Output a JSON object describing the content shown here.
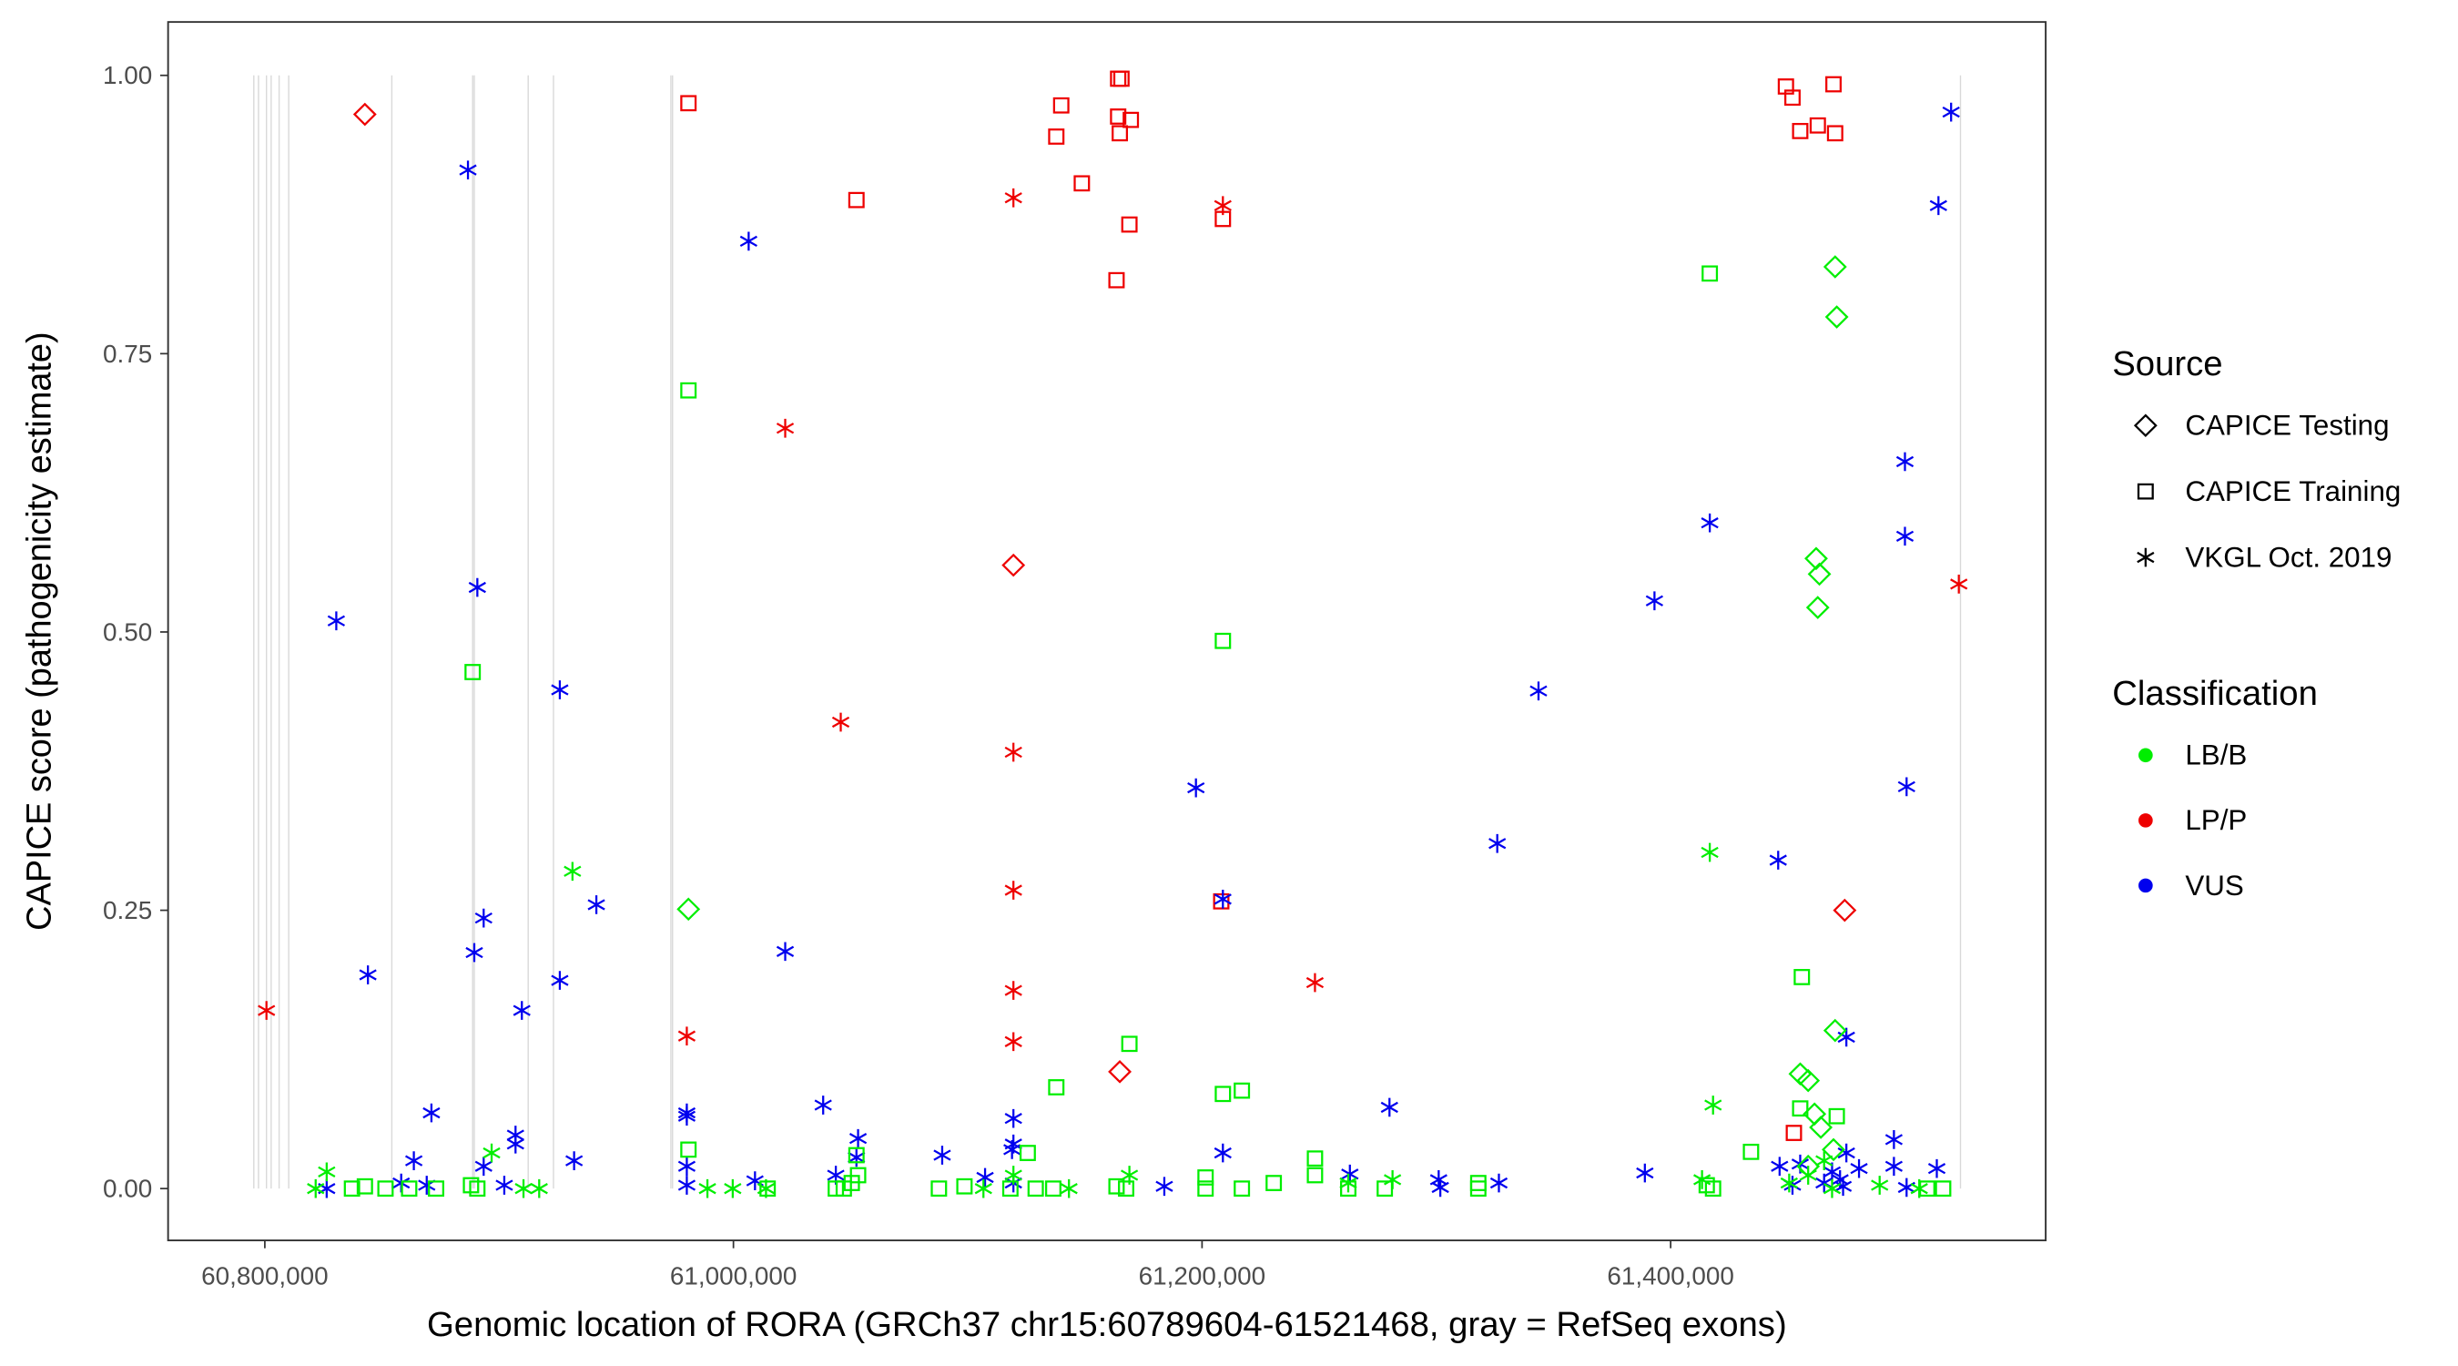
{
  "chart_data": {
    "type": "scatter",
    "xlabel": "Genomic location of RORA (GRCh37 chr15:60789604-61521468, gray = RefSeq exons)",
    "ylabel": "CAPICE score (pathogenicity estimate)",
    "xlim": [
      60789604,
      61521468
    ],
    "ylim": [
      -0.05,
      1.05
    ],
    "x_ticks": [
      {
        "value": 60800000,
        "label": "60,800,000"
      },
      {
        "value": 61000000,
        "label": "61,000,000"
      },
      {
        "value": 61200000,
        "label": "61,200,000"
      },
      {
        "value": 61400000,
        "label": "61,400,000"
      }
    ],
    "y_ticks": [
      {
        "value": 0,
        "label": "0.00"
      },
      {
        "value": 0.25,
        "label": "0.25"
      },
      {
        "value": 0.5,
        "label": "0.50"
      },
      {
        "value": 0.75,
        "label": "0.75"
      },
      {
        "value": 1.0,
        "label": "1.00"
      }
    ],
    "grid": false,
    "exons": [
      60795300,
      60797300,
      60800700,
      60802700,
      60806100,
      60810200,
      60854200,
      60888700,
      60889400,
      60912400,
      60923200,
      60973300,
      60974000,
      61523700
    ],
    "exon_color": "#d9d9d9",
    "legend": {
      "placement": "right",
      "source_title": "Source",
      "sources": [
        {
          "name": "CAPICE Testing",
          "shape": "diamond"
        },
        {
          "name": "CAPICE Training",
          "shape": "square"
        },
        {
          "name": "VKGL Oct. 2019",
          "shape": "asterisk"
        }
      ],
      "class_title": "Classification",
      "classes": [
        {
          "name": "LB/B",
          "color": "#00ee00"
        },
        {
          "name": "LP/P",
          "color": "#ee0000"
        },
        {
          "name": "VUS",
          "color": "#0000ee"
        }
      ]
    },
    "series": [
      {
        "class": "LP/P",
        "source": "CAPICE Testing",
        "points": [
          [
            60842700,
            0.965
          ],
          [
            61119500,
            0.56
          ],
          [
            61164900,
            0.105
          ],
          [
            61474300,
            0.25
          ]
        ]
      },
      {
        "class": "LP/P",
        "source": "CAPICE Training",
        "points": [
          [
            60980800,
            0.975
          ],
          [
            61052500,
            0.888
          ],
          [
            61137800,
            0.945
          ],
          [
            61139900,
            0.973
          ],
          [
            61148700,
            0.903
          ],
          [
            61164200,
            0.997
          ],
          [
            61165600,
            0.997
          ],
          [
            61164200,
            0.963
          ],
          [
            61169600,
            0.96
          ],
          [
            61164900,
            0.948
          ],
          [
            61169000,
            0.866
          ],
          [
            61163500,
            0.816
          ],
          [
            61208900,
            0.871
          ],
          [
            61208200,
            0.258
          ],
          [
            61449200,
            0.99
          ],
          [
            61452000,
            0.98
          ],
          [
            61455300,
            0.95
          ],
          [
            61462800,
            0.955
          ],
          [
            61469500,
            0.992
          ],
          [
            61470200,
            0.948
          ],
          [
            61452600,
            0.05
          ]
        ]
      },
      {
        "class": "LP/P",
        "source": "VKGL Oct. 2019",
        "points": [
          [
            60800700,
            0.16
          ],
          [
            60980100,
            0.137
          ],
          [
            61022100,
            0.683
          ],
          [
            61045800,
            0.419
          ],
          [
            61119500,
            0.89
          ],
          [
            61119500,
            0.392
          ],
          [
            61119500,
            0.268
          ],
          [
            61119500,
            0.178
          ],
          [
            61119500,
            0.132
          ],
          [
            61208900,
            0.883
          ],
          [
            61248200,
            0.185
          ],
          [
            61523000,
            0.543
          ]
        ]
      },
      {
        "class": "VUS",
        "source": "VKGL Oct. 2019",
        "points": [
          [
            60886700,
            0.915
          ],
          [
            60830500,
            0.51
          ],
          [
            60890700,
            0.54
          ],
          [
            60925900,
            0.448
          ],
          [
            60844000,
            0.192
          ],
          [
            60889400,
            0.212
          ],
          [
            60893400,
            0.243
          ],
          [
            60941500,
            0.255
          ],
          [
            60925900,
            0.187
          ],
          [
            60909700,
            0.16
          ],
          [
            60871100,
            0.068
          ],
          [
            60863600,
            0.025
          ],
          [
            60893400,
            0.02
          ],
          [
            60907000,
            0.048
          ],
          [
            60907000,
            0.04
          ],
          [
            60932000,
            0.025
          ],
          [
            60826400,
            0.0
          ],
          [
            60858200,
            0.005
          ],
          [
            60869100,
            0.003
          ],
          [
            60902200,
            0.003
          ],
          [
            61006500,
            0.851
          ],
          [
            61022100,
            0.213
          ],
          [
            60980100,
            0.068
          ],
          [
            60980100,
            0.065
          ],
          [
            60980100,
            0.02
          ],
          [
            60980100,
            0.003
          ],
          [
            61009200,
            0.007
          ],
          [
            61038300,
            0.075
          ],
          [
            61043700,
            0.012
          ],
          [
            61053200,
            0.045
          ],
          [
            61052500,
            0.028
          ],
          [
            61089100,
            0.03
          ],
          [
            61107400,
            0.01
          ],
          [
            61119500,
            0.063
          ],
          [
            61119500,
            0.04
          ],
          [
            61118900,
            0.035
          ],
          [
            61119500,
            0.005
          ],
          [
            61183900,
            0.002
          ],
          [
            61197400,
            0.36
          ],
          [
            61208900,
            0.26
          ],
          [
            61208900,
            0.032
          ],
          [
            61263100,
            0.013
          ],
          [
            61280000,
            0.073
          ],
          [
            61301000,
            0.008
          ],
          [
            61301700,
            0.001
          ],
          [
            61326000,
            0.31
          ],
          [
            61326700,
            0.005
          ],
          [
            61343600,
            0.447
          ],
          [
            61389000,
            0.014
          ],
          [
            61393100,
            0.528
          ],
          [
            61416700,
            0.598
          ],
          [
            61445900,
            0.295
          ],
          [
            61500000,
            0.653
          ],
          [
            61500000,
            0.586
          ],
          [
            61500700,
            0.361
          ],
          [
            61519700,
            0.967
          ],
          [
            61514300,
            0.883
          ],
          [
            61475000,
            0.136
          ],
          [
            61495300,
            0.044
          ],
          [
            61495300,
            0.02
          ],
          [
            61513600,
            0.018
          ],
          [
            61500700,
            0.001
          ],
          [
            61446500,
            0.02
          ],
          [
            61455300,
            0.022
          ],
          [
            61468900,
            0.015
          ],
          [
            61472300,
            0.008
          ],
          [
            61475000,
            0.032
          ],
          [
            61480400,
            0.018
          ],
          [
            61452000,
            0.003
          ],
          [
            61465500,
            0.005
          ],
          [
            61473600,
            0.002
          ]
        ]
      },
      {
        "class": "LB/B",
        "source": "CAPICE Testing",
        "points": [
          [
            60980800,
            0.251
          ],
          [
            61470200,
            0.828
          ],
          [
            61470900,
            0.783
          ],
          [
            61462100,
            0.566
          ],
          [
            61463500,
            0.552
          ],
          [
            61462800,
            0.522
          ],
          [
            61470200,
            0.142
          ],
          [
            61455300,
            0.103
          ],
          [
            61458700,
            0.097
          ],
          [
            61461400,
            0.067
          ],
          [
            61464100,
            0.055
          ],
          [
            61469500,
            0.035
          ],
          [
            61458700,
            0.02
          ]
        ]
      },
      {
        "class": "LB/B",
        "source": "CAPICE Training",
        "points": [
          [
            60888700,
            0.464
          ],
          [
            60980800,
            0.717
          ],
          [
            60980800,
            0.035
          ],
          [
            61208900,
            0.492
          ],
          [
            61416700,
            0.822
          ],
          [
            61169000,
            0.13
          ],
          [
            61137800,
            0.091
          ],
          [
            61208900,
            0.085
          ],
          [
            61217000,
            0.088
          ],
          [
            61456000,
            0.19
          ],
          [
            61455300,
            0.072
          ],
          [
            61470900,
            0.065
          ],
          [
            61434300,
            0.033
          ],
          [
            61248200,
            0.027
          ],
          [
            61248200,
            0.012
          ],
          [
            61201500,
            0.01
          ],
          [
            61230600,
            0.005
          ],
          [
            61125600,
            0.032
          ],
          [
            61052500,
            0.03
          ],
          [
            61087700,
            0.0
          ],
          [
            61098600,
            0.002
          ],
          [
            61129000,
            0.0
          ],
          [
            61136500,
            0.0
          ],
          [
            61163500,
            0.002
          ],
          [
            61167600,
            0.0
          ],
          [
            61201500,
            0.0
          ],
          [
            61217000,
            0.0
          ],
          [
            61262400,
            0.0
          ],
          [
            61278000,
            0.0
          ],
          [
            61317900,
            0.005
          ],
          [
            61317900,
            0.0
          ],
          [
            61415400,
            0.003
          ],
          [
            61418100,
            0.0
          ],
          [
            61516300,
            0.0
          ],
          [
            61509500,
            0.0
          ],
          [
            60842700,
            0.002
          ],
          [
            60837200,
            0.0
          ],
          [
            60851500,
            0.0
          ],
          [
            60861600,
            0.0
          ],
          [
            60873100,
            0.0
          ],
          [
            60888000,
            0.003
          ],
          [
            60890700,
            0.0
          ],
          [
            61043700,
            0.0
          ],
          [
            61047100,
            0.0
          ],
          [
            61050500,
            0.005
          ],
          [
            61053200,
            0.012
          ],
          [
            61014600,
            0.0
          ],
          [
            61118200,
            0.0
          ]
        ]
      },
      {
        "class": "LB/B",
        "source": "VKGL Oct. 2019",
        "points": [
          [
            60826400,
            0.015
          ],
          [
            60896800,
            0.032
          ],
          [
            60931300,
            0.285
          ],
          [
            61416700,
            0.302
          ],
          [
            61418100,
            0.075
          ],
          [
            61169000,
            0.012
          ],
          [
            61119500,
            0.012
          ],
          [
            61281300,
            0.008
          ],
          [
            61413400,
            0.008
          ],
          [
            60988900,
            0.0
          ],
          [
            60999700,
            0.0
          ],
          [
            61013900,
            0.0
          ],
          [
            60821700,
            0.0
          ],
          [
            60917100,
            0.0
          ],
          [
            60910400,
            0.0
          ],
          [
            61106700,
            0.0
          ],
          [
            61143200,
            0.0
          ],
          [
            61262400,
            0.005
          ],
          [
            61489200,
            0.003
          ],
          [
            61506100,
            0.0
          ],
          [
            61458700,
            0.012
          ],
          [
            61465500,
            0.025
          ],
          [
            61450600,
            0.005
          ],
          [
            61468900,
            0.0
          ]
        ]
      }
    ]
  }
}
